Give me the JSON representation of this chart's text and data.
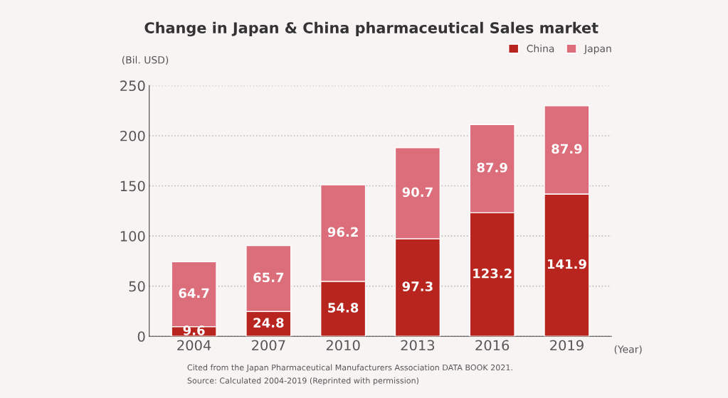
{
  "chart_data": {
    "type": "bar",
    "title": "Change in Japan & China pharmaceutical Sales market",
    "ylabel": "(Bil. USD)",
    "xlabel": "(Year)",
    "categories": [
      "2004",
      "2007",
      "2010",
      "2013",
      "2016",
      "2019"
    ],
    "series": [
      {
        "name": "China",
        "color": "#b8241e",
        "values": [
          9.6,
          24.8,
          54.8,
          97.3,
          123.2,
          141.9
        ]
      },
      {
        "name": "Japan",
        "color": "#dc6d7b",
        "values": [
          64.7,
          65.7,
          96.2,
          90.7,
          87.9,
          87.9
        ]
      }
    ],
    "stacked": true,
    "data_labels": true,
    "ylim": [
      0,
      250
    ],
    "yticks": [
      0,
      50,
      100,
      150,
      200,
      250
    ],
    "grid": "y",
    "legend": "top right",
    "annotations": [
      "Cited from the Japan Pharmaceutical Manufacturers Association DATA BOOK 2021.",
      "Source: Calculated 2004-2019 (Reprinted with permission)"
    ]
  }
}
